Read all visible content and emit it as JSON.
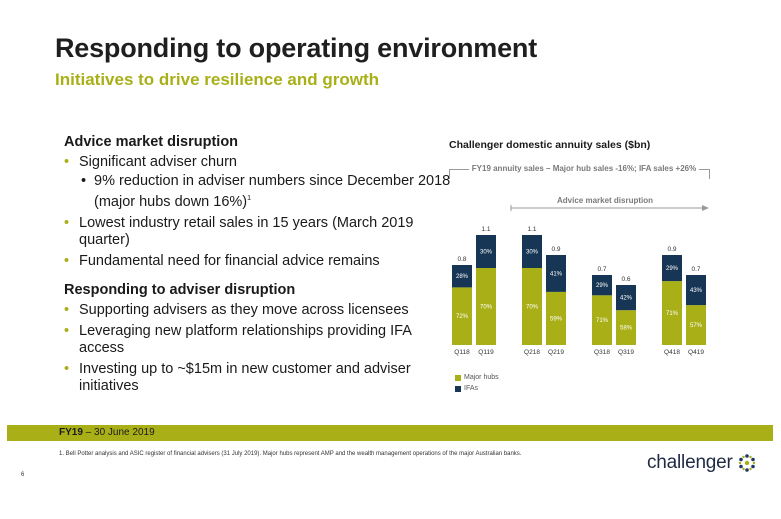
{
  "header": {
    "title": "Responding to operating environment",
    "subtitle": "Initiatives to drive resilience and growth"
  },
  "left": {
    "section1": {
      "heading": "Advice market disruption",
      "bullet1": "Significant adviser churn",
      "sub1": "9% reduction in adviser numbers since December 2018 (major hubs down 16%)",
      "sub1_sup": "1",
      "bullet2": "Lowest industry retail sales in 15 years (March 2019 quarter)",
      "bullet3": "Fundamental need for financial advice remains"
    },
    "section2": {
      "heading": "Responding to adviser disruption",
      "bullet1": "Supporting advisers as they move across licensees",
      "bullet2": "Leveraging new platform relationships providing IFA access",
      "bullet3": "Investing up to ~$15m in new customer and adviser initiatives"
    }
  },
  "chart_header": {
    "title": "Challenger domestic annuity sales ($bn)",
    "fy19_note": "FY19 annuity sales – Major hub sales -16%; IFA sales +26%",
    "advice_note": "Advice market disruption"
  },
  "colors": {
    "major_hubs": "#a9b017",
    "ifas": "#173655",
    "accent": "#a9b017"
  },
  "chart_data": {
    "type": "bar",
    "stacked": true,
    "title": "Challenger domestic annuity sales ($bn)",
    "categories": [
      "Q118",
      "Q119",
      "Q218",
      "Q219",
      "Q318",
      "Q319",
      "Q418",
      "Q419"
    ],
    "totals": [
      0.8,
      1.1,
      1.1,
      0.9,
      0.7,
      0.6,
      0.9,
      0.7
    ],
    "series": [
      {
        "name": "Major hubs",
        "share_labels": [
          "72%",
          "70%",
          "70%",
          "59%",
          "71%",
          "58%",
          "71%",
          "57%"
        ],
        "shares": [
          72,
          70,
          70,
          59,
          71,
          58,
          71,
          57
        ]
      },
      {
        "name": "IFAs",
        "share_labels": [
          "28%",
          "30%",
          "30%",
          "41%",
          "29%",
          "42%",
          "29%",
          "43%"
        ],
        "shares": [
          28,
          30,
          30,
          41,
          29,
          42,
          29,
          43
        ]
      }
    ],
    "legend": [
      "Major hubs",
      "IFAs"
    ],
    "legend_position": "bottom-left"
  },
  "footer": {
    "fy_bold": "FY19",
    "fy_rest": " – 30 June 2019",
    "footnote": "1. Bell Potter analysis and ASIC register of financial advisers (31 July 2019). Major hubs represent AMP and the wealth management operations of the major Australian banks.",
    "page": "6",
    "logo": "challenger"
  }
}
